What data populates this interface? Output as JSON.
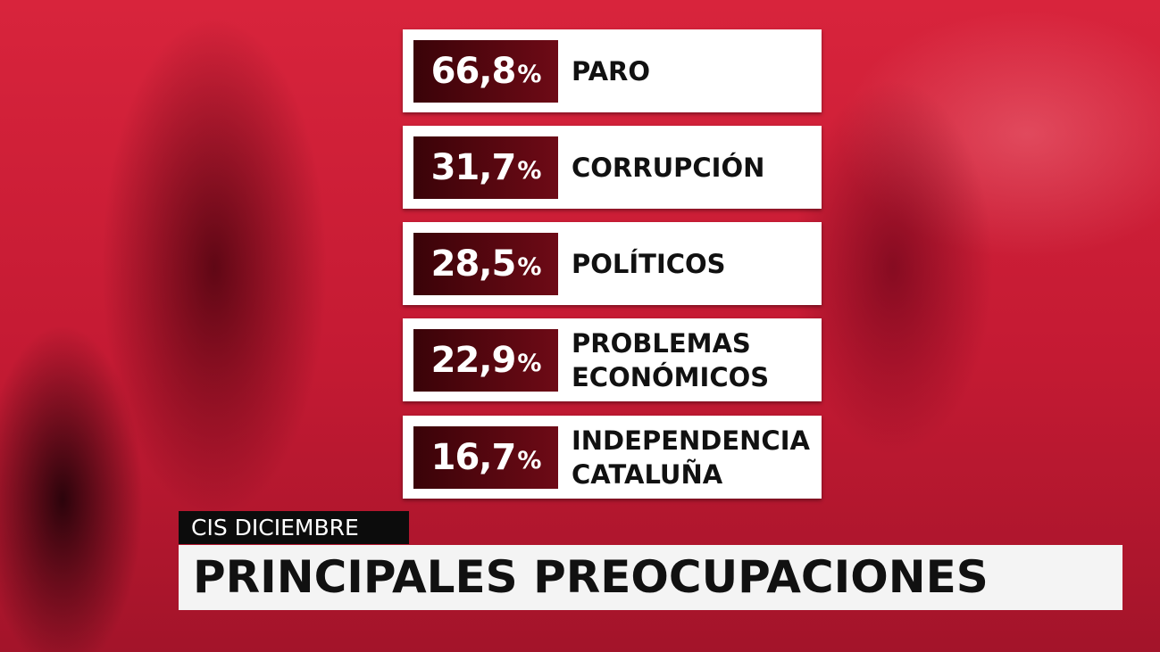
{
  "items": [
    {
      "value": "66,8",
      "unit": "%",
      "label": [
        "PARO"
      ]
    },
    {
      "value": "31,7",
      "unit": "%",
      "label": [
        "CORRUPCIÓN"
      ]
    },
    {
      "value": "28,5",
      "unit": "%",
      "label": [
        "POLÍTICOS"
      ]
    },
    {
      "value": "22,9",
      "unit": "%",
      "label": [
        "PROBLEMAS",
        "ECONÓMICOS"
      ]
    },
    {
      "value": "16,7",
      "unit": "%",
      "label": [
        "INDEPENDENCIA",
        "CATALUÑA"
      ]
    }
  ],
  "footer": {
    "kicker": "CIS DICIEMBRE",
    "title": "PRINCIPALES PREOCUPACIONES"
  }
}
